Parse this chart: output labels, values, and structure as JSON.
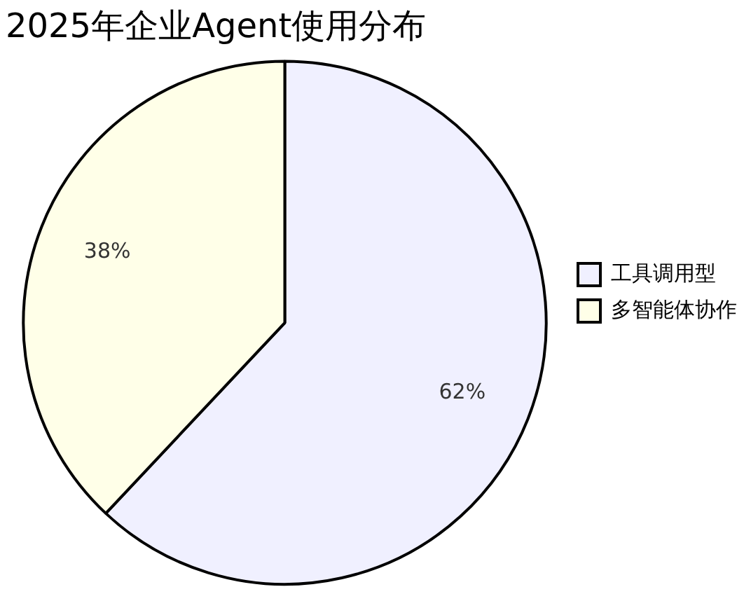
{
  "chart_data": {
    "type": "pie",
    "title": "2025年企业Agent使用分布",
    "categories": [
      "工具调用型",
      "多智能体协作"
    ],
    "values": [
      62,
      38
    ],
    "value_labels": [
      "62%",
      "38%"
    ],
    "colors": [
      "#f0f0ff",
      "#ffffe8"
    ],
    "legend": "right"
  }
}
